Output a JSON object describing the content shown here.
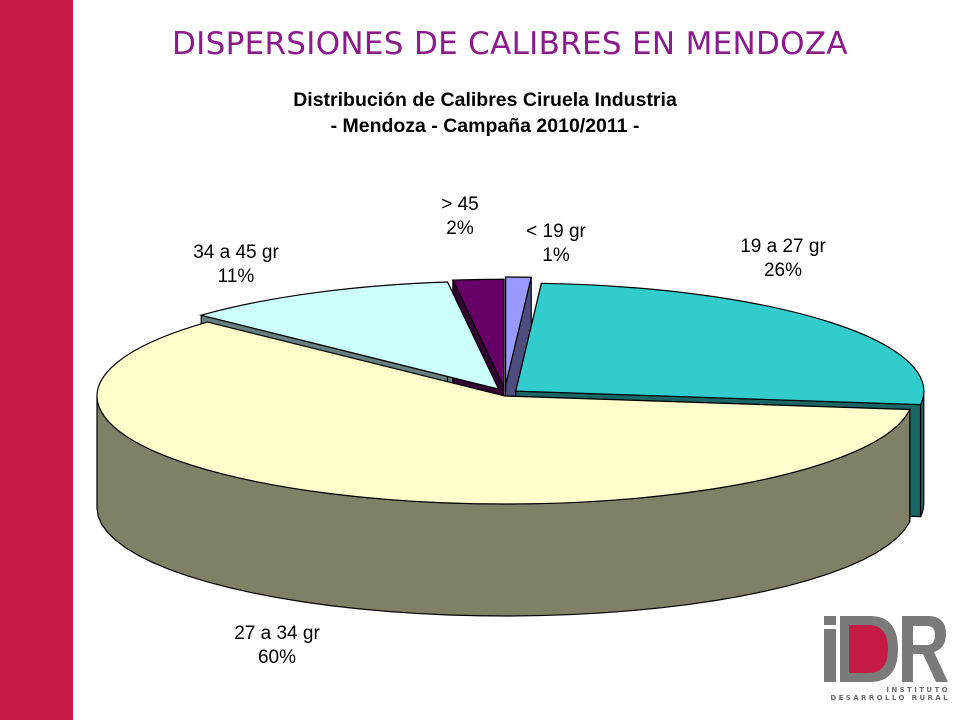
{
  "slide": {
    "title": "DISPERSIONES DE CALIBRES EN MENDOZA",
    "side_bar_color": "#c41a43",
    "title_color": "#8b1a8b"
  },
  "logo": {
    "mark": "iDR",
    "line1": "INSTITUTO",
    "line2": "DESARROLLO RURAL",
    "mark_color": "#7a7a7a",
    "accent_color": "#c41a43"
  },
  "chart_data": {
    "type": "pie",
    "style": "3d-exploded",
    "title_lines": [
      "Distribución de Calibres Ciruela Industria",
      "- Mendoza - Campaña 2010/2011 -"
    ],
    "slices": [
      {
        "category": "< 19 gr",
        "value": 1,
        "label": "1%",
        "top_color": "#9999ff",
        "side_color": "#4d4d80"
      },
      {
        "category": "19 a 27 gr",
        "value": 26,
        "label": "26%",
        "top_color": "#33cccc",
        "side_color": "#1a6666"
      },
      {
        "category": "27 a 34 gr",
        "value": 60,
        "label": "60%",
        "top_color": "#ffffcc",
        "side_color": "#808066"
      },
      {
        "category": "34 a 45 gr",
        "value": 11,
        "label": "11%",
        "top_color": "#ccffff",
        "side_color": "#668080"
      },
      {
        "category": "> 45",
        "value": 2,
        "label": "2%",
        "top_color": "#660066",
        "side_color": "#330033"
      }
    ],
    "legend": "none",
    "data_labels": "category-and-percent"
  }
}
